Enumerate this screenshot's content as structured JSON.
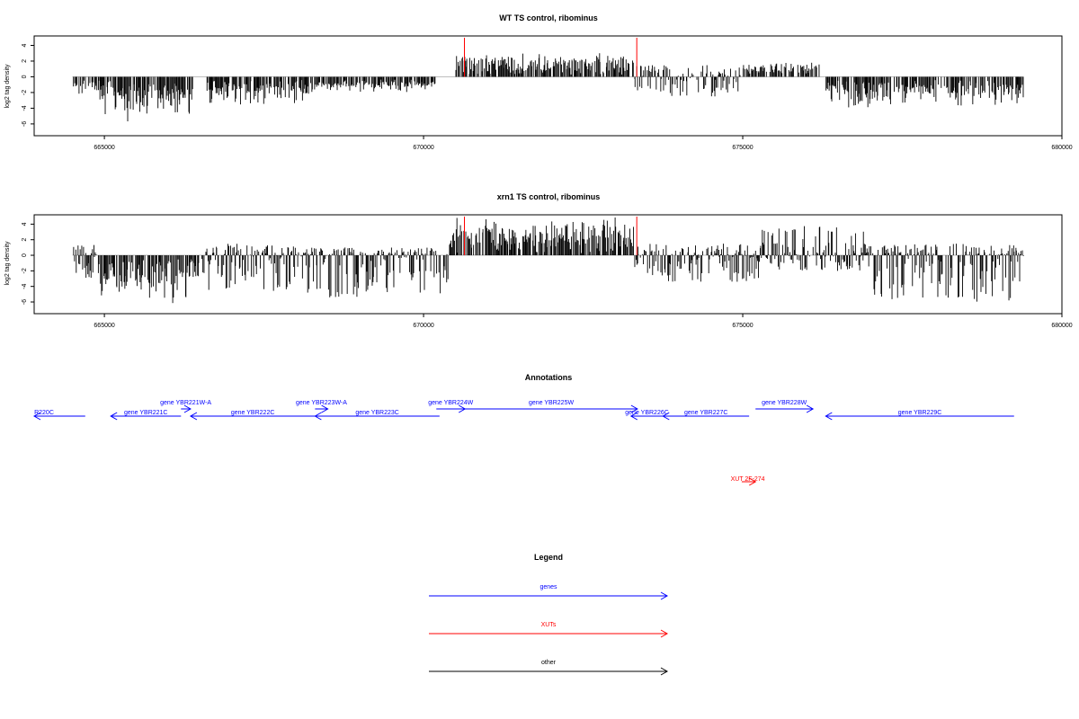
{
  "panels": [
    {
      "title": "WT TS control, ribominus",
      "ylabel": "log2 tag density",
      "yticks": [
        -6,
        -4,
        -2,
        0,
        2,
        4
      ],
      "xticks": [
        665000,
        670000,
        675000,
        680000
      ],
      "xlim": [
        663900,
        680000
      ],
      "ylim": [
        -7.5,
        5.2
      ],
      "markers": [
        670640,
        673340
      ],
      "marker_color": "#ff0000",
      "data_extent": [
        664500,
        679400
      ],
      "shape": [
        {
          "x": [
            664500,
            664600,
            664900
          ],
          "lo": -2.5,
          "hi": 0,
          "sign": -1
        },
        {
          "x": [
            664900,
            665000
          ],
          "lo": -5.5,
          "hi": 0,
          "sign": -1
        },
        {
          "x": [
            665000,
            666400
          ],
          "lo": -6,
          "hi": 0,
          "sign": -1
        },
        {
          "x": [
            666600,
            668300
          ],
          "lo": -4.5,
          "hi": 0,
          "sign": -1
        },
        {
          "x": [
            668300,
            670200
          ],
          "lo": -2,
          "hi": 0,
          "sign": -1
        },
        {
          "x": [
            670500,
            673300
          ],
          "lo": 0,
          "hi": 3,
          "sign": 1
        },
        {
          "x": [
            673300,
            675000
          ],
          "lo": -2.5,
          "hi": 1.5,
          "sign": 0
        },
        {
          "x": [
            675000,
            676200
          ],
          "lo": 0,
          "hi": 2,
          "sign": 1
        },
        {
          "x": [
            676300,
            679400
          ],
          "lo": -4.5,
          "hi": 0,
          "sign": -1
        }
      ],
      "seed": 11
    },
    {
      "title": "xrn1 TS control, ribominus",
      "ylabel": "log2 tag density",
      "yticks": [
        -6,
        -4,
        -2,
        0,
        2,
        4
      ],
      "xticks": [
        665000,
        670000,
        675000,
        680000
      ],
      "xlim": [
        663900,
        680000
      ],
      "ylim": [
        -7.5,
        5.2
      ],
      "markers": [
        670640,
        673340
      ],
      "marker_color": "#ff0000",
      "data_extent": [
        664500,
        679400
      ],
      "shape": [
        {
          "x": [
            664500,
            664900
          ],
          "lo": -3,
          "hi": 1.5,
          "sign": 0
        },
        {
          "x": [
            664900,
            666500
          ],
          "lo": -7,
          "hi": 0,
          "sign": -1
        },
        {
          "x": [
            666500,
            668000
          ],
          "lo": -5,
          "hi": 1.5,
          "sign": 0
        },
        {
          "x": [
            668000,
            670400
          ],
          "lo": -5.5,
          "hi": 1,
          "sign": 0
        },
        {
          "x": [
            670400,
            673300
          ],
          "lo": 0,
          "hi": 5,
          "sign": 1
        },
        {
          "x": [
            673300,
            675300
          ],
          "lo": -3.5,
          "hi": 1.5,
          "sign": 0
        },
        {
          "x": [
            675300,
            676900
          ],
          "lo": -2,
          "hi": 4,
          "sign": 0
        },
        {
          "x": [
            676900,
            679400
          ],
          "lo": -6,
          "hi": 1.5,
          "sign": 0
        }
      ],
      "seed": 29
    }
  ],
  "annotations": {
    "title": "Annotations",
    "genes": [
      {
        "label": "R220C",
        "start": 663900,
        "end": 664700,
        "strand": "-",
        "row": 1
      },
      {
        "label": "gene YBR221C",
        "start": 665100,
        "end": 666200,
        "strand": "-",
        "row": 1
      },
      {
        "label": "gene YBR221W-A",
        "start": 666200,
        "end": 666350,
        "strand": "+",
        "row": 0
      },
      {
        "label": "gene YBR222C",
        "start": 666350,
        "end": 668300,
        "strand": "-",
        "row": 1
      },
      {
        "label": "gene YBR223W-A",
        "start": 668300,
        "end": 668500,
        "strand": "+",
        "row": 0
      },
      {
        "label": "gene YBR223C",
        "start": 668300,
        "end": 670250,
        "strand": "-",
        "row": 1
      },
      {
        "label": "gene YBR224W",
        "start": 670200,
        "end": 670650,
        "strand": "+",
        "row": 0
      },
      {
        "label": "gene YBR225W",
        "start": 670650,
        "end": 673350,
        "strand": "+",
        "row": 0
      },
      {
        "label": "gene YBR226C",
        "start": 673250,
        "end": 673750,
        "strand": "-",
        "row": 1
      },
      {
        "label": "gene YBR227C",
        "start": 673750,
        "end": 675100,
        "strand": "-",
        "row": 1
      },
      {
        "label": "gene YBR228W",
        "start": 675200,
        "end": 676100,
        "strand": "+",
        "row": 0
      },
      {
        "label": "gene YBR229C",
        "start": 676300,
        "end": 679250,
        "strand": "-",
        "row": 1
      }
    ],
    "xuts": [
      {
        "label": "XUT 2F-274",
        "start": 674900,
        "end": 675200,
        "strand": "+"
      }
    ]
  },
  "legend": {
    "title": "Legend",
    "items": [
      {
        "label": "genes",
        "color": "#0000ff"
      },
      {
        "label": "XUTs",
        "color": "#ff0000"
      },
      {
        "label": "other",
        "color": "#000000"
      }
    ]
  },
  "colors": {
    "gene": "#0000ff",
    "xut": "#ff0000",
    "other": "#000000",
    "axis": "#000000",
    "baseline": "#bebebe"
  }
}
